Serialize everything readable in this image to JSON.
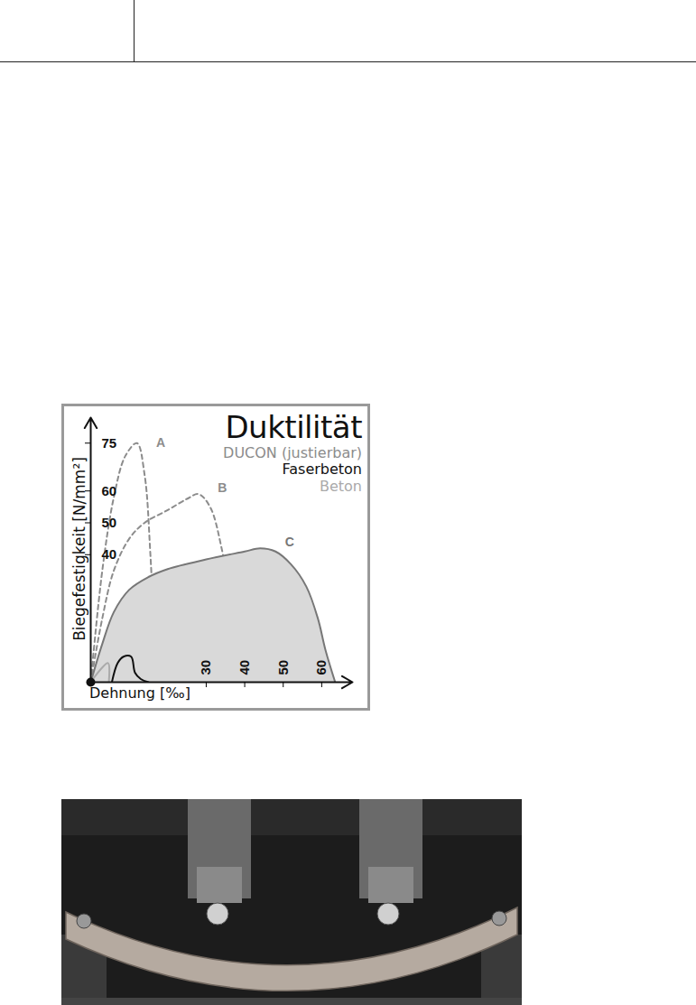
{
  "chart_data": {
    "type": "line",
    "title": "Duktilität",
    "x_label": "Dehnung [‰]",
    "y_label": "Biegefestigkeit [N/mm²]",
    "xlim": [
      0,
      68
    ],
    "ylim": [
      0,
      83
    ],
    "xticks": [
      30,
      40,
      50,
      60
    ],
    "yticks": [
      40,
      50,
      60,
      75
    ],
    "legend": "top-right",
    "legend_entries": [
      {
        "name": "DUCON (justierbar)",
        "color": "#8c8c8c"
      },
      {
        "name": "Faserbeton",
        "color": "#111111"
      },
      {
        "name": "Beton",
        "color": "#aaaaaa"
      }
    ],
    "series": [
      {
        "name": "A",
        "color": "#8c8c8c",
        "line_style": "dashed",
        "x": [
          0,
          3,
          6,
          9,
          12,
          14,
          15.5,
          17
        ],
        "values": [
          0,
          35,
          58,
          71,
          75,
          65,
          40,
          0
        ],
        "label_x": 17,
        "label_y": 75
      },
      {
        "name": "B",
        "color": "#8c8c8c",
        "line_style": "dashed",
        "x": [
          0,
          3,
          6,
          10,
          14,
          20,
          25,
          28,
          31,
          34,
          37,
          39.5
        ],
        "values": [
          0,
          20,
          35,
          45,
          50,
          54,
          57.5,
          59,
          55,
          42,
          20,
          0
        ],
        "label_x": 33,
        "label_y": 61
      },
      {
        "name": "C",
        "color": "#777777",
        "type": "area",
        "line_style": "solid",
        "x": [
          0,
          3,
          6,
          10,
          15,
          20,
          30,
          40,
          44,
          48,
          52,
          56,
          59,
          61,
          63.5
        ],
        "values": [
          0,
          12,
          22,
          29,
          33,
          35.5,
          38.5,
          41,
          42,
          41,
          37,
          30,
          20,
          10,
          0
        ],
        "label_x": 50.5,
        "label_y": 44
      },
      {
        "name": "Faserbeton",
        "color": "#111111",
        "line_style": "solid",
        "x": [
          5.5,
          7,
          8.5,
          10.5,
          11.5,
          13,
          15
        ],
        "values": [
          0,
          6,
          8,
          8,
          3,
          1,
          0
        ]
      },
      {
        "name": "Beton",
        "color": "#aaaaaa",
        "line_style": "solid",
        "x": [
          0,
          4.5,
          4.7
        ],
        "values": [
          0,
          6,
          0
        ]
      }
    ]
  }
}
